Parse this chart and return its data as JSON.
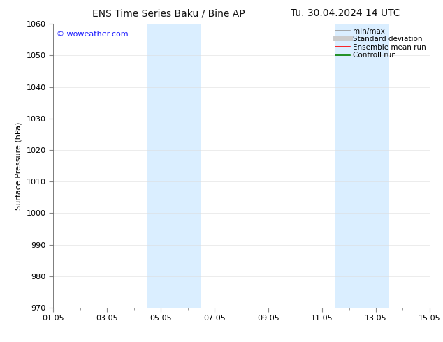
{
  "title_left": "ENS Time Series Baku / Bine AP",
  "title_right": "Tu. 30.04.2024 14 UTC",
  "ylabel": "Surface Pressure (hPa)",
  "ylim": [
    970,
    1060
  ],
  "yticks": [
    970,
    980,
    990,
    1000,
    1010,
    1020,
    1030,
    1040,
    1050,
    1060
  ],
  "xlim_start": 0.0,
  "xlim_end": 14.0,
  "xtick_labels": [
    "01.05",
    "03.05",
    "05.05",
    "07.05",
    "09.05",
    "11.05",
    "13.05",
    "15.05"
  ],
  "xtick_positions": [
    0,
    2,
    4,
    6,
    8,
    10,
    12,
    14
  ],
  "watermark": "© woweather.com",
  "watermark_color": "#1a1aff",
  "background_color": "#ffffff",
  "plot_bg_color": "#ffffff",
  "shade_regions": [
    {
      "xstart": 3.5,
      "xend": 5.5,
      "color": "#daeeff"
    },
    {
      "xstart": 10.5,
      "xend": 12.5,
      "color": "#daeeff"
    }
  ],
  "legend_entries": [
    {
      "label": "min/max",
      "color": "#999999",
      "linewidth": 1.2,
      "linestyle": "-"
    },
    {
      "label": "Standard deviation",
      "color": "#cccccc",
      "linewidth": 5,
      "linestyle": "-"
    },
    {
      "label": "Ensemble mean run",
      "color": "#ff0000",
      "linewidth": 1.2,
      "linestyle": "-"
    },
    {
      "label": "Controll run",
      "color": "#008000",
      "linewidth": 1.2,
      "linestyle": "-"
    }
  ],
  "title_fontsize": 10,
  "tick_fontsize": 8,
  "ylabel_fontsize": 8,
  "legend_fontsize": 7.5,
  "watermark_fontsize": 8
}
